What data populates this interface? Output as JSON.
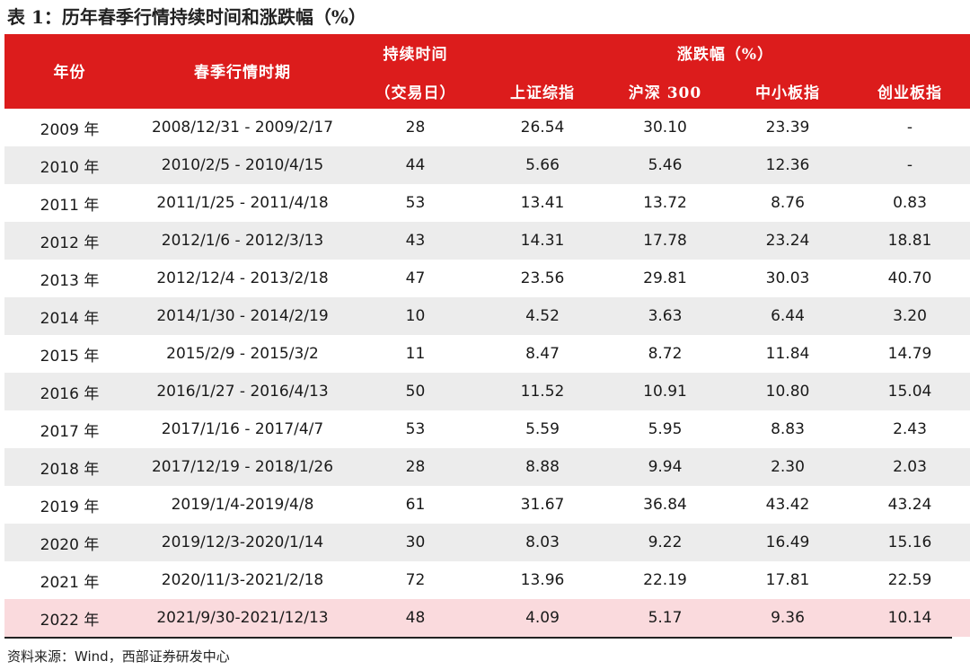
{
  "title": "表 1：历年春季行情持续时间和涨跌幅（%）",
  "header": {
    "year": "年份",
    "period": "春季行情时期",
    "duration_line1": "持续时间",
    "duration_line2": "（交易日）",
    "change_group": "涨跌幅（%）",
    "shanghai": "上证综指",
    "hs300": "沪深 300",
    "sme": "中小板指",
    "chinext": "创业板指"
  },
  "rows": [
    {
      "year": "2009 年",
      "period": "2008/12/31 - 2009/2/17",
      "duration": "28",
      "shanghai": "26.54",
      "hs300": "30.10",
      "sme": "23.39",
      "chinext": "-"
    },
    {
      "year": "2010 年",
      "period": "2010/2/5 - 2010/4/15",
      "duration": "44",
      "shanghai": "5.66",
      "hs300": "5.46",
      "sme": "12.36",
      "chinext": "-"
    },
    {
      "year": "2011 年",
      "period": "2011/1/25 - 2011/4/18",
      "duration": "53",
      "shanghai": "13.41",
      "hs300": "13.72",
      "sme": "8.76",
      "chinext": "0.83"
    },
    {
      "year": "2012 年",
      "period": "2012/1/6 - 2012/3/13",
      "duration": "43",
      "shanghai": "14.31",
      "hs300": "17.78",
      "sme": "23.24",
      "chinext": "18.81"
    },
    {
      "year": "2013 年",
      "period": "2012/12/4 - 2013/2/18",
      "duration": "47",
      "shanghai": "23.56",
      "hs300": "29.81",
      "sme": "30.03",
      "chinext": "40.70"
    },
    {
      "year": "2014 年",
      "period": "2014/1/30 - 2014/2/19",
      "duration": "10",
      "shanghai": "4.52",
      "hs300": "3.63",
      "sme": "6.44",
      "chinext": "3.20"
    },
    {
      "year": "2015 年",
      "period": "2015/2/9 - 2015/3/2",
      "duration": "11",
      "shanghai": "8.47",
      "hs300": "8.72",
      "sme": "11.84",
      "chinext": "14.79"
    },
    {
      "year": "2016 年",
      "period": "2016/1/27 - 2016/4/13",
      "duration": "50",
      "shanghai": "11.52",
      "hs300": "10.91",
      "sme": "10.80",
      "chinext": "15.04"
    },
    {
      "year": "2017 年",
      "period": "2017/1/16 - 2017/4/7",
      "duration": "53",
      "shanghai": "5.59",
      "hs300": "5.95",
      "sme": "8.83",
      "chinext": "2.43"
    },
    {
      "year": "2018 年",
      "period": "2017/12/19 - 2018/1/26",
      "duration": "28",
      "shanghai": "8.88",
      "hs300": "9.94",
      "sme": "2.30",
      "chinext": "2.03"
    },
    {
      "year": "2019 年",
      "period": "2019/1/4-2019/4/8",
      "duration": "61",
      "shanghai": "31.67",
      "hs300": "36.84",
      "sme": "43.42",
      "chinext": "43.24"
    },
    {
      "year": "2020 年",
      "period": "2019/12/3-2020/1/14",
      "duration": "30",
      "shanghai": "8.03",
      "hs300": "9.22",
      "sme": "16.49",
      "chinext": "15.16"
    },
    {
      "year": "2021 年",
      "period": "2020/11/3-2021/2/18",
      "duration": "72",
      "shanghai": "13.96",
      "hs300": "22.19",
      "sme": "17.81",
      "chinext": "22.59"
    },
    {
      "year": "2022 年",
      "period": "2021/9/30-2021/12/13",
      "duration": "48",
      "shanghai": "4.09",
      "hs300": "5.17",
      "sme": "9.36",
      "chinext": "10.14"
    }
  ],
  "source": "资料来源：Wind，西部证券研发中心",
  "colors": {
    "header_bg": "#dc1c1c",
    "header_text": "#ffffff",
    "stripe": "#ececec",
    "highlight_row": "#fadadd"
  }
}
